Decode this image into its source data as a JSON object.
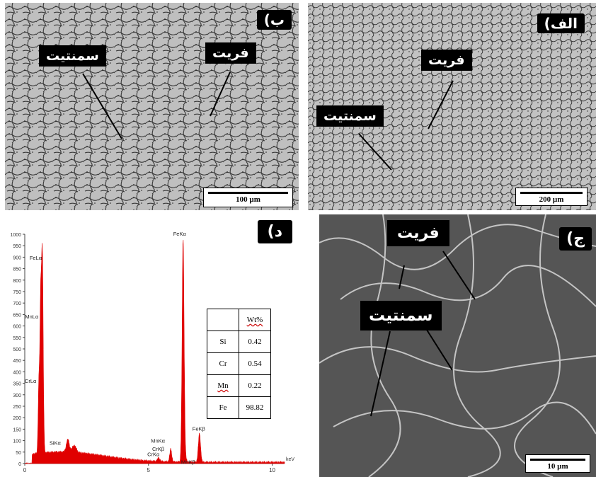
{
  "panels": {
    "b": {
      "tag": "ب)",
      "label_cementite": "سمنتیت",
      "label_ferrite": "فریت",
      "scale": "100 µm"
    },
    "alef": {
      "tag": "الف)",
      "label_ferrite": "فریت",
      "label_cementite": "سمنتیت",
      "scale": "200 µm"
    },
    "dal": {
      "tag": "د)"
    },
    "jim": {
      "tag": "ج)",
      "label_ferrite": "فریت",
      "label_cementite": "سمنتیت",
      "scale": "10 µm"
    }
  },
  "chart_data": {
    "type": "line",
    "xlabel": "keV",
    "xlim": [
      0,
      10.5
    ],
    "ylim": [
      0,
      1000
    ],
    "x_ticks": [
      "0",
      "5",
      "10"
    ],
    "y_ticks": [
      "0",
      "50",
      "100",
      "150",
      "200",
      "250",
      "300",
      "350",
      "400",
      "450",
      "500",
      "550",
      "600",
      "650",
      "700",
      "750",
      "800",
      "850",
      "900",
      "950",
      "1000"
    ],
    "peaks": [
      {
        "label": "FeLα",
        "x": 0.71,
        "y": 870
      },
      {
        "label": "MnLα",
        "x": 0.64,
        "y": 620
      },
      {
        "label": "CrLα",
        "x": 0.57,
        "y": 340
      },
      {
        "label": "SiKα",
        "x": 1.74,
        "y": 70
      },
      {
        "label": "CrKα",
        "x": 5.41,
        "y": 20
      },
      {
        "label": "MnKα",
        "x": 5.9,
        "y": 60
      },
      {
        "label": "CrKβ",
        "x": 5.95,
        "y": 50
      },
      {
        "label": "FeKα",
        "x": 6.4,
        "y": 975
      },
      {
        "label": "MnKβ",
        "x": 6.49,
        "y": 30
      },
      {
        "label": "FeKβ",
        "x": 7.06,
        "y": 125
      }
    ],
    "line_color": "#e00000",
    "table": {
      "header": "Wt%",
      "rows": [
        {
          "element": "Si",
          "value": "0.42"
        },
        {
          "element": "Cr",
          "value": "0.54"
        },
        {
          "element": "Mn",
          "value": "0.22"
        },
        {
          "element": "Fe",
          "value": "98.82"
        }
      ]
    }
  }
}
